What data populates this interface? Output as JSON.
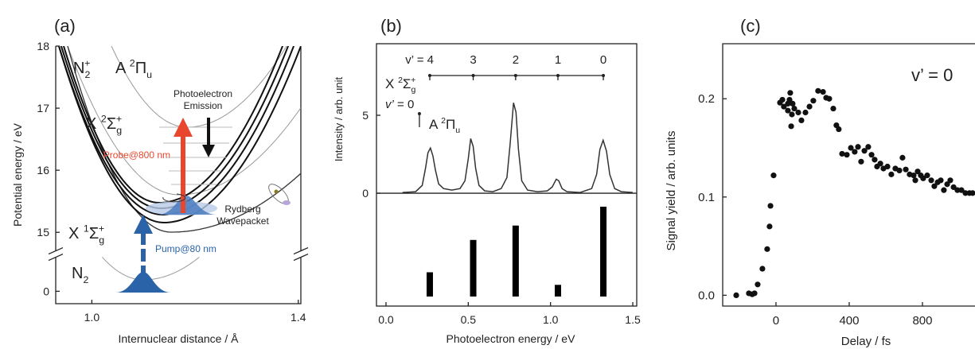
{
  "chart_data": [
    {
      "type": "energy-diagram",
      "label": "(a)",
      "xlabel": "Internuclear distance / Å",
      "ylabel": "Potential energy / eV",
      "xlim": [
        0.93,
        1.405
      ],
      "xticks": [
        {
          "value": 1.0,
          "label": "1.0"
        },
        1.4
      ],
      "ylim": [
        -0.2,
        18
      ],
      "ybreak": [
        0.6,
        14.65
      ],
      "yticks": [
        0,
        15,
        16,
        17,
        18
      ],
      "annotations": [
        {
          "segments": [
            {
              "text": "N"
            },
            {
              "sub": "2"
            },
            {
              "sup": "+"
            }
          ]
        },
        {
          "segments": [
            {
              "text": "A "
            },
            {
              "sup": "2"
            },
            {
              "text": "Π"
            },
            {
              "sub": "u"
            }
          ]
        },
        {
          "segments": [
            {
              "text": "Photoelectron"
            }
          ]
        },
        {
          "segments": [
            {
              "text": "Emission"
            }
          ]
        },
        {
          "segments": [
            {
              "text": "X "
            },
            {
              "sup": "2"
            },
            {
              "text": "Σ"
            },
            {
              "sub": "g"
            },
            {
              "sup": "+"
            }
          ]
        },
        {
          "segments": [
            {
              "text": "Probe@800 nm"
            }
          ]
        },
        {
          "segments": [
            {
              "text": "Rydberg"
            }
          ]
        },
        {
          "segments": [
            {
              "text": "Wavepacket"
            }
          ]
        },
        {
          "segments": [
            {
              "text": "X "
            },
            {
              "sup": "1"
            },
            {
              "text": "Σ"
            },
            {
              "sub": "g"
            },
            {
              "sup": "+"
            }
          ]
        },
        {
          "segments": [
            {
              "text": "Pump@80 nm"
            }
          ]
        },
        {
          "segments": [
            {
              "text": "N"
            },
            {
              "sub": "2"
            }
          ]
        }
      ]
    },
    {
      "type": "spectrum",
      "label": "(b)",
      "xlabel": "Photoelectron energy / eV",
      "ylabel": "Intensity / arb. unit",
      "xlim": [
        -0.058,
        1.524
      ],
      "xticks": [
        {
          "value": 0,
          "label": "0.0"
        },
        0.5,
        {
          "value": 1,
          "label": "1.0"
        },
        1.5
      ],
      "ylim": [
        -7.24,
        9.59
      ],
      "yticks": [
        0,
        5
      ],
      "color": "#333333",
      "x": [
        0.1,
        0.18,
        0.22,
        0.24,
        0.255,
        0.27,
        0.285,
        0.3,
        0.32,
        0.35,
        0.4,
        0.45,
        0.48,
        0.5,
        0.515,
        0.53,
        0.545,
        0.565,
        0.6,
        0.65,
        0.7,
        0.735,
        0.755,
        0.775,
        0.79,
        0.805,
        0.825,
        0.86,
        0.92,
        0.98,
        1.01,
        1.035,
        1.05,
        1.07,
        1.1,
        1.18,
        1.25,
        1.28,
        1.3,
        1.32,
        1.34,
        1.36,
        1.39,
        1.43,
        1.5
      ],
      "values": [
        0.05,
        0.1,
        0.5,
        1.6,
        2.6,
        2.9,
        2.4,
        1.5,
        0.6,
        0.3,
        0.2,
        0.3,
        0.8,
        2.2,
        3.5,
        3.0,
        1.6,
        0.5,
        0.15,
        0.1,
        0.3,
        1.0,
        3.2,
        5.8,
        5.2,
        2.8,
        0.8,
        0.2,
        0.1,
        0.15,
        0.4,
        0.9,
        0.8,
        0.3,
        0.1,
        0.05,
        0.3,
        1.2,
        2.8,
        3.4,
        2.7,
        1.2,
        0.3,
        0.1,
        0.05
      ],
      "stick_x": [
        0.266,
        0.53,
        0.788,
        1.045,
        1.321
      ],
      "stick_values": [
        0.27,
        0.63,
        0.79,
        0.13,
        1.0
      ],
      "stick_labels": [
        "v’ = 4",
        "3",
        "2",
        "1",
        "0"
      ],
      "a_state_x": 0.203,
      "annotations": [
        {
          "segments": [
            {
              "text": "X "
            },
            {
              "sup": "2"
            },
            {
              "text": "Σ"
            },
            {
              "sub": "g"
            },
            {
              "sup": "+"
            }
          ]
        },
        {
          "segments": [
            {
              "italic": "v’"
            },
            {
              "text": " = 0"
            }
          ]
        },
        {
          "segments": [
            {
              "text": "A "
            },
            {
              "sup": "2"
            },
            {
              "text": "Π"
            },
            {
              "sub": "u"
            }
          ]
        }
      ]
    },
    {
      "type": "scatter",
      "label": "(c)",
      "annotation": "v’ = 0",
      "xlabel": "Delay / fs",
      "ylabel": "Signal yield / arb. units",
      "xlim": [
        -291,
        1087
      ],
      "xticks": [
        0,
        400,
        800
      ],
      "ylim": [
        -0.011,
        0.256
      ],
      "yticks": [
        {
          "value": 0,
          "label": "0.0"
        },
        0.1,
        0.2
      ],
      "color": "#111111",
      "x": [
        -217,
        -148,
        -130,
        -117,
        -100,
        -74,
        -48,
        -35,
        -30,
        -13,
        22,
        35,
        43,
        65,
        65,
        74,
        78,
        83,
        87,
        91,
        100,
        122,
        139,
        161,
        183,
        204,
        230,
        257,
        274,
        291,
        313,
        330,
        343,
        361,
        387,
        409,
        430,
        448,
        465,
        483,
        504,
        522,
        539,
        552,
        570,
        587,
        609,
        630,
        652,
        674,
        691,
        709,
        730,
        752,
        761,
        774,
        791,
        804,
        826,
        848,
        865,
        883,
        900,
        917,
        935,
        952,
        970,
        991,
        1013,
        1035,
        1057,
        1074
      ],
      "values": [
        0.0,
        0.002,
        0.001,
        0.002,
        0.011,
        0.027,
        0.047,
        0.07,
        0.091,
        0.122,
        0.196,
        0.199,
        0.192,
        0.195,
        0.188,
        0.199,
        0.206,
        0.172,
        0.184,
        0.195,
        0.19,
        0.186,
        0.178,
        0.186,
        0.192,
        0.198,
        0.208,
        0.207,
        0.201,
        0.2,
        0.19,
        0.173,
        0.169,
        0.144,
        0.143,
        0.15,
        0.146,
        0.151,
        0.136,
        0.147,
        0.151,
        0.143,
        0.138,
        0.131,
        0.134,
        0.129,
        0.131,
        0.123,
        0.129,
        0.127,
        0.14,
        0.128,
        0.123,
        0.122,
        0.117,
        0.126,
        0.122,
        0.119,
        0.122,
        0.117,
        0.111,
        0.115,
        0.117,
        0.107,
        0.113,
        0.117,
        0.11,
        0.107,
        0.107,
        0.104,
        0.104,
        0.104
      ]
    }
  ]
}
